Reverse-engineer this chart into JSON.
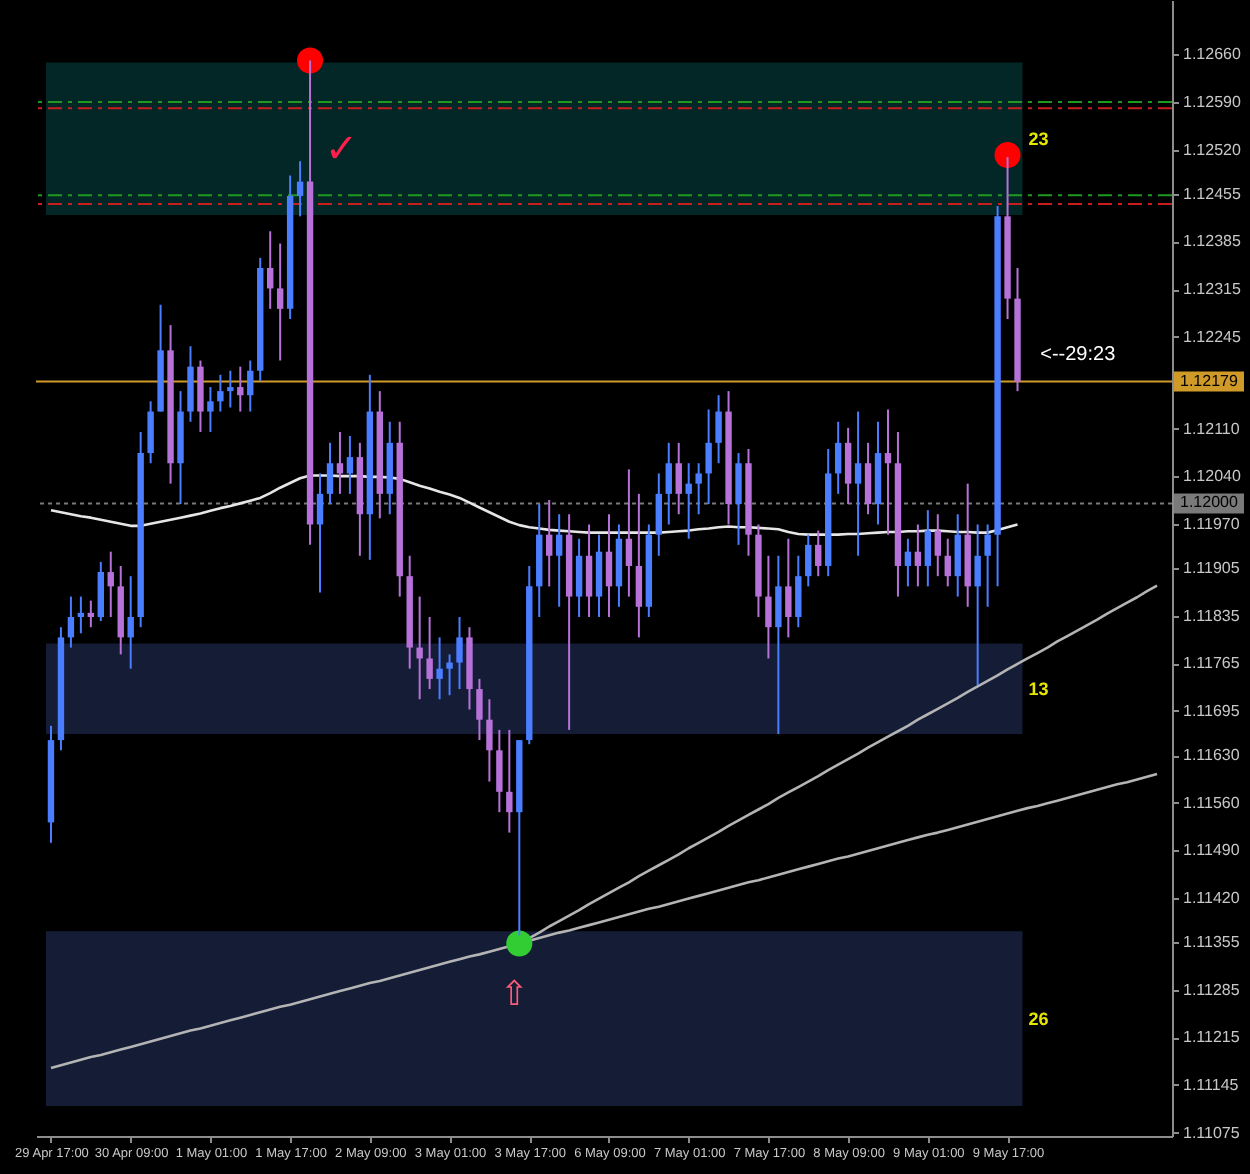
{
  "chart_data": {
    "type": "candlestick",
    "categories": [
      "29 Apr 17:00",
      null,
      null,
      null,
      null,
      null,
      null,
      null,
      "30 Apr 09:00",
      null,
      null,
      null,
      null,
      null,
      null,
      null,
      "1 May 01:00",
      null,
      null,
      null,
      null,
      null,
      null,
      null,
      "1 May 17:00",
      null,
      null,
      null,
      null,
      null,
      null,
      null,
      "2 May 09:00",
      null,
      null,
      null,
      null,
      null,
      null,
      null,
      "3 May 01:00",
      null,
      null,
      null,
      null,
      null,
      null,
      null,
      "3 May 17:00",
      null,
      null,
      null,
      null,
      null,
      null,
      null,
      "6 May 09:00",
      null,
      null,
      null,
      null,
      null,
      null,
      null,
      "7 May 01:00",
      null,
      null,
      null,
      null,
      null,
      null,
      null,
      "7 May 17:00",
      null,
      null,
      null,
      null,
      null,
      null,
      null,
      "8 May 09:00",
      null,
      null,
      null,
      null,
      null,
      null,
      null,
      "9 May 01:00",
      null,
      null,
      null,
      null,
      null,
      null,
      null,
      "9 May 17:00",
      null,
      null,
      null,
      null,
      null,
      null,
      null,
      null,
      null,
      null,
      null,
      null,
      null,
      null,
      null
    ],
    "ohlc": [
      [
        1.11531,
        1.11673,
        1.11501,
        1.11652
      ],
      [
        1.11652,
        1.11818,
        1.11637,
        1.11803
      ],
      [
        1.11803,
        1.11863,
        1.11788,
        1.11833
      ],
      [
        1.11833,
        1.11863,
        1.11809,
        1.11839
      ],
      [
        1.11839,
        1.11857,
        1.11818,
        1.11833
      ],
      [
        1.11833,
        1.11914,
        1.11827,
        1.11899
      ],
      [
        1.11899,
        1.11929,
        1.11833,
        1.11878
      ],
      [
        1.11878,
        1.11908,
        1.11778,
        1.11803
      ],
      [
        1.11803,
        1.11893,
        1.11757,
        1.11833
      ],
      [
        1.11833,
        1.12105,
        1.11818,
        1.12074
      ],
      [
        1.12074,
        1.1215,
        1.12059,
        1.12135
      ],
      [
        1.12135,
        1.12292,
        1.12135,
        1.12225
      ],
      [
        1.12225,
        1.12262,
        1.12029,
        1.12059
      ],
      [
        1.12059,
        1.12165,
        1.11999,
        1.12135
      ],
      [
        1.12135,
        1.12231,
        1.1212,
        1.12201
      ],
      [
        1.12201,
        1.1221,
        1.12105,
        1.12135
      ],
      [
        1.12135,
        1.12171,
        1.12105,
        1.1215
      ],
      [
        1.1215,
        1.12189,
        1.12135,
        1.12165
      ],
      [
        1.12165,
        1.12195,
        1.12141,
        1.12171
      ],
      [
        1.12171,
        1.12201,
        1.12135,
        1.12159
      ],
      [
        1.12159,
        1.1221,
        1.12135,
        1.12195
      ],
      [
        1.12195,
        1.12361,
        1.1218,
        1.12346
      ],
      [
        1.12346,
        1.124,
        1.12286,
        1.12316
      ],
      [
        1.12316,
        1.12382,
        1.1221,
        1.12286
      ],
      [
        1.12286,
        1.12482,
        1.12271,
        1.12452
      ],
      [
        1.12452,
        1.12503,
        1.12422,
        1.12473
      ],
      [
        1.12473,
        1.12651,
        1.11939,
        1.11969
      ],
      [
        1.11969,
        1.12044,
        1.11869,
        1.12014
      ],
      [
        1.12014,
        1.12089,
        1.11999,
        1.12059
      ],
      [
        1.12059,
        1.12105,
        1.12014,
        1.12044
      ],
      [
        1.12044,
        1.12099,
        1.12014,
        1.12068
      ],
      [
        1.12068,
        1.12089,
        1.11923,
        1.11984
      ],
      [
        1.11984,
        1.12189,
        1.11917,
        1.12135
      ],
      [
        1.12135,
        1.12165,
        1.11978,
        1.12014
      ],
      [
        1.12014,
        1.1212,
        1.11984,
        1.12089
      ],
      [
        1.12089,
        1.1212,
        1.11863,
        1.11893
      ],
      [
        1.11893,
        1.11923,
        1.11757,
        1.11788
      ],
      [
        1.11788,
        1.11863,
        1.11712,
        1.11772
      ],
      [
        1.11772,
        1.11833,
        1.11727,
        1.11742
      ],
      [
        1.11742,
        1.11803,
        1.11712,
        1.11757
      ],
      [
        1.11757,
        1.11778,
        1.11718,
        1.11766
      ],
      [
        1.11766,
        1.11833,
        1.11727,
        1.11803
      ],
      [
        1.11803,
        1.11818,
        1.11697,
        1.11727
      ],
      [
        1.11727,
        1.11742,
        1.11652,
        1.11682
      ],
      [
        1.11682,
        1.11712,
        1.11591,
        1.11637
      ],
      [
        1.11637,
        1.11667,
        1.11546,
        1.11576
      ],
      [
        1.11576,
        1.11667,
        1.11516,
        1.11546
      ],
      [
        1.11546,
        1.11652,
        1.11365,
        1.11652
      ],
      [
        1.11652,
        1.11908,
        1.11646,
        1.11878
      ],
      [
        1.11878,
        1.11999,
        1.11833,
        1.11954
      ],
      [
        1.11954,
        1.12005,
        1.11878,
        1.11923
      ],
      [
        1.11923,
        1.11984,
        1.11848,
        1.11954
      ],
      [
        1.11954,
        1.11984,
        1.11667,
        1.11863
      ],
      [
        1.11863,
        1.11948,
        1.11833,
        1.11923
      ],
      [
        1.11923,
        1.11969,
        1.11833,
        1.11863
      ],
      [
        1.11863,
        1.11954,
        1.11833,
        1.11929
      ],
      [
        1.11929,
        1.11984,
        1.11833,
        1.11878
      ],
      [
        1.11878,
        1.11969,
        1.11848,
        1.11948
      ],
      [
        1.11948,
        1.1205,
        1.11863,
        1.11908
      ],
      [
        1.11908,
        1.12014,
        1.11803,
        1.11848
      ],
      [
        1.11848,
        1.11969,
        1.11833,
        1.11954
      ],
      [
        1.11954,
        1.12044,
        1.11923,
        1.12014
      ],
      [
        1.12014,
        1.12089,
        1.11969,
        1.12059
      ],
      [
        1.12059,
        1.12089,
        1.11984,
        1.12014
      ],
      [
        1.12014,
        1.12059,
        1.11948,
        1.12029
      ],
      [
        1.12029,
        1.12059,
        1.11984,
        1.12044
      ],
      [
        1.12044,
        1.12138,
        1.11999,
        1.12089
      ],
      [
        1.12089,
        1.12159,
        1.12059,
        1.12135
      ],
      [
        1.12135,
        1.12165,
        1.11969,
        1.11999
      ],
      [
        1.11999,
        1.12074,
        1.11939,
        1.12059
      ],
      [
        1.12059,
        1.1208,
        1.11923,
        1.11954
      ],
      [
        1.11954,
        1.11969,
        1.11833,
        1.11863
      ],
      [
        1.11863,
        1.11923,
        1.11772,
        1.11818
      ],
      [
        1.11818,
        1.11923,
        1.11661,
        1.11878
      ],
      [
        1.11878,
        1.11948,
        1.11803,
        1.11833
      ],
      [
        1.11833,
        1.11923,
        1.11818,
        1.11893
      ],
      [
        1.11893,
        1.11954,
        1.11878,
        1.11939
      ],
      [
        1.11939,
        1.1196,
        1.11893,
        1.11908
      ],
      [
        1.11908,
        1.1208,
        1.11893,
        1.12044
      ],
      [
        1.12044,
        1.1212,
        1.12014,
        1.12089
      ],
      [
        1.12089,
        1.12111,
        1.11999,
        1.12029
      ],
      [
        1.12029,
        1.12135,
        1.11923,
        1.12059
      ],
      [
        1.12059,
        1.12089,
        1.11984,
        1.11999
      ],
      [
        1.11999,
        1.1212,
        1.11969,
        1.12074
      ],
      [
        1.12074,
        1.12138,
        1.11954,
        1.12059
      ],
      [
        1.12059,
        1.12105,
        1.11863,
        1.11908
      ],
      [
        1.11908,
        1.11948,
        1.11878,
        1.11929
      ],
      [
        1.11929,
        1.11969,
        1.11878,
        1.11908
      ],
      [
        1.11908,
        1.1199,
        1.11878,
        1.1196
      ],
      [
        1.1196,
        1.11984,
        1.11893,
        1.11923
      ],
      [
        1.11923,
        1.11948,
        1.11878,
        1.11893
      ],
      [
        1.11893,
        1.11984,
        1.11863,
        1.11954
      ],
      [
        1.11954,
        1.12029,
        1.11848,
        1.11878
      ],
      [
        1.11878,
        1.11969,
        1.11733,
        1.11923
      ],
      [
        1.11923,
        1.11969,
        1.11848,
        1.11954
      ],
      [
        1.11954,
        1.12437,
        1.11878,
        1.12422
      ],
      [
        1.12422,
        1.12509,
        1.12271,
        1.12301
      ],
      [
        1.12301,
        1.12346,
        1.12165,
        1.12179
      ],
      null,
      null,
      null,
      null,
      null,
      null,
      null,
      null,
      null,
      null,
      null,
      null,
      null,
      null
    ],
    "colors": [
      "#4a7dff",
      "#4a7dff",
      "#4a7dff",
      "#4a7dff",
      "#b672d8",
      "#4a7dff",
      "#b672d8",
      "#b672d8",
      "#4a7dff",
      "#4a7dff",
      "#4a7dff",
      "#4a7dff",
      "#b672d8",
      "#4a7dff",
      "#4a7dff",
      "#b672d8",
      "#4a7dff",
      "#4a7dff",
      "#4a7dff",
      "#b672d8",
      "#4a7dff",
      "#4a7dff",
      "#b672d8",
      "#b672d8",
      "#4a7dff",
      "#4a7dff",
      "#b672d8",
      "#4a7dff",
      "#4a7dff",
      "#b672d8",
      "#4a7dff",
      "#b672d8",
      "#4a7dff",
      "#b672d8",
      "#4a7dff",
      "#b672d8",
      "#b672d8",
      "#b672d8",
      "#b672d8",
      "#4a7dff",
      "#4a7dff",
      "#4a7dff",
      "#b672d8",
      "#b672d8",
      "#b672d8",
      "#b672d8",
      "#b672d8",
      "#4a7dff",
      "#4a7dff",
      "#4a7dff",
      "#b672d8",
      "#4a7dff",
      "#b672d8",
      "#4a7dff",
      "#b672d8",
      "#4a7dff",
      "#b672d8",
      "#4a7dff",
      "#b672d8",
      "#b672d8",
      "#4a7dff",
      "#4a7dff",
      "#4a7dff",
      "#b672d8",
      "#4a7dff",
      "#4a7dff",
      "#4a7dff",
      "#4a7dff",
      "#b672d8",
      "#4a7dff",
      "#b672d8",
      "#b672d8",
      "#b672d8",
      "#4a7dff",
      "#b672d8",
      "#4a7dff",
      "#4a7dff",
      "#b672d8",
      "#4a7dff",
      "#4a7dff",
      "#b672d8",
      "#4a7dff",
      "#b672d8",
      "#4a7dff",
      "#b672d8",
      "#b672d8",
      "#4a7dff",
      "#b672d8",
      "#4a7dff",
      "#b672d8",
      "#b672d8",
      "#4a7dff",
      "#b672d8",
      "#4a7dff",
      "#4a7dff",
      "#4a7dff",
      "#b672d8",
      "#b672d8",
      null,
      null,
      null,
      null,
      null,
      null,
      null,
      null,
      null,
      null,
      null,
      null,
      null,
      null
    ],
    "series": [
      {
        "type": "line",
        "color": "#e6e6e6",
        "line_style": "solid",
        "values": [
          1.1199,
          1.11987,
          1.11984,
          1.11981,
          1.11979,
          1.11976,
          1.11973,
          1.1197,
          1.11967,
          1.11967,
          1.1197,
          1.11973,
          1.11976,
          1.11979,
          1.11982,
          1.11985,
          1.11989,
          1.11993,
          1.11996,
          1.12,
          1.12004,
          1.12008,
          1.12015,
          1.12023,
          1.1203,
          1.12037,
          1.12041,
          1.12041,
          1.12041,
          1.1204,
          1.1204,
          1.1204,
          1.12039,
          1.12039,
          1.12038,
          1.12036,
          1.12031,
          1.12026,
          1.12022,
          1.12017,
          1.12013,
          1.12008,
          1.12001,
          1.11994,
          1.11987,
          1.1198,
          1.11973,
          1.11968,
          1.11965,
          1.11963,
          1.11961,
          1.1196,
          1.11959,
          1.11958,
          1.11957,
          1.11957,
          1.11957,
          1.11957,
          1.11957,
          1.11957,
          1.11957,
          1.11957,
          1.11958,
          1.11959,
          1.1196,
          1.11962,
          1.11963,
          1.11965,
          1.11966,
          1.11965,
          1.11965,
          1.11964,
          1.11963,
          1.11962,
          1.11958,
          1.11955,
          1.11954,
          1.11954,
          1.11954,
          1.11954,
          1.11955,
          1.11955,
          1.11956,
          1.11957,
          1.11958,
          1.11958,
          1.11959,
          1.11959,
          1.1196,
          1.1196,
          1.11959,
          1.11958,
          1.11958,
          1.11957,
          1.11957,
          1.11961,
          1.11965,
          1.11969,
          null,
          null,
          null,
          null,
          null,
          null,
          null,
          null,
          null,
          null,
          null,
          null,
          null,
          null
        ]
      },
      {
        "type": "line",
        "color": "#b4b4b4",
        "line_style": "solid",
        "values": [
          1.1117,
          1.11174,
          1.11178,
          1.11182,
          1.11186,
          1.11189,
          1.11193,
          1.11197,
          1.11201,
          1.11205,
          1.11209,
          1.11213,
          1.11217,
          1.11221,
          1.11225,
          1.11228,
          1.11232,
          1.11236,
          1.1124,
          1.11244,
          1.11248,
          1.11252,
          1.11256,
          1.1126,
          1.11263,
          1.11267,
          1.11271,
          1.11275,
          1.11279,
          1.11283,
          1.11287,
          1.11291,
          1.11295,
          1.11298,
          1.11302,
          1.11306,
          1.1131,
          1.11314,
          1.11318,
          1.11322,
          1.11326,
          1.1133,
          1.11334,
          1.11337,
          1.11341,
          1.11345,
          1.11349,
          1.11353,
          1.11357,
          1.11361,
          1.11365,
          1.11369,
          1.11372,
          1.11376,
          1.1138,
          1.11384,
          1.11388,
          1.11392,
          1.11396,
          1.114,
          1.11404,
          1.11407,
          1.11411,
          1.11415,
          1.11419,
          1.11423,
          1.11427,
          1.11431,
          1.11435,
          1.11439,
          1.11443,
          1.11446,
          1.1145,
          1.11454,
          1.11458,
          1.11462,
          1.11466,
          1.1147,
          1.11474,
          1.11478,
          1.11481,
          1.11485,
          1.11489,
          1.11493,
          1.11497,
          1.11501,
          1.11505,
          1.11509,
          1.11513,
          1.11516,
          1.1152,
          1.11524,
          1.11528,
          1.11532,
          1.11536,
          1.1154,
          1.11544,
          1.11548,
          1.11552,
          1.11555,
          1.11559,
          1.11563,
          1.11567,
          1.11571,
          1.11575,
          1.11579,
          1.11583,
          1.11587,
          1.1159,
          1.11594,
          1.11598,
          1.11602
        ]
      },
      {
        "type": "line",
        "color": "#b4b4b4",
        "line_style": "solid",
        "values": [
          null,
          null,
          null,
          null,
          null,
          null,
          null,
          null,
          null,
          null,
          null,
          null,
          null,
          null,
          null,
          null,
          null,
          null,
          null,
          null,
          null,
          null,
          null,
          null,
          null,
          null,
          null,
          null,
          null,
          null,
          null,
          null,
          null,
          null,
          null,
          null,
          null,
          null,
          null,
          null,
          null,
          null,
          null,
          null,
          null,
          null,
          null,
          1.11353,
          1.11361,
          1.11369,
          1.11378,
          1.11386,
          1.11394,
          1.11402,
          1.11411,
          1.11419,
          1.11427,
          1.11435,
          1.11443,
          1.11452,
          1.1146,
          1.11468,
          1.11476,
          1.11484,
          1.11493,
          1.11501,
          1.11509,
          1.11517,
          1.11526,
          1.11534,
          1.11542,
          1.1155,
          1.11558,
          1.11567,
          1.11575,
          1.11583,
          1.11591,
          1.11599,
          1.11608,
          1.11616,
          1.11624,
          1.11632,
          1.11641,
          1.11649,
          1.11657,
          1.11665,
          1.11673,
          1.11682,
          1.1169,
          1.11698,
          1.11706,
          1.11714,
          1.11723,
          1.11731,
          1.11739,
          1.11747,
          1.11756,
          1.11764,
          1.11772,
          1.1178,
          1.11788,
          1.11797,
          1.11805,
          1.11813,
          1.11821,
          1.11829,
          1.11838,
          1.11846,
          1.11854,
          1.11862,
          1.11871,
          1.11879
        ]
      },
      {
        "type": "scatter",
        "color": "#ff0000",
        "marker": "circle",
        "values": [
          null,
          null,
          null,
          null,
          null,
          null,
          null,
          null,
          null,
          null,
          null,
          null,
          null,
          null,
          null,
          null,
          null,
          null,
          null,
          null,
          null,
          null,
          null,
          null,
          null,
          null,
          1.12651,
          null,
          null,
          null,
          null,
          null,
          null,
          null,
          null,
          null,
          null,
          null,
          null,
          null,
          null,
          null,
          null,
          null,
          null,
          null,
          null,
          null,
          null,
          null,
          null,
          null,
          null,
          null,
          null,
          null,
          null,
          null,
          null,
          null,
          null,
          null,
          null,
          null,
          null,
          null,
          null,
          null,
          null,
          null,
          null,
          null,
          null,
          null,
          null,
          null,
          null,
          null,
          null,
          null,
          null,
          null,
          null,
          null,
          null,
          null,
          null,
          null,
          null,
          null,
          null,
          null,
          null,
          null,
          null,
          null,
          1.12512,
          null,
          null,
          null,
          null,
          null,
          null,
          null,
          null,
          null,
          null,
          null,
          null,
          null,
          null,
          null
        ]
      },
      {
        "type": "scatter",
        "color": "#32cd32",
        "marker": "circle",
        "values": [
          null,
          null,
          null,
          null,
          null,
          null,
          null,
          null,
          null,
          null,
          null,
          null,
          null,
          null,
          null,
          null,
          null,
          null,
          null,
          null,
          null,
          null,
          null,
          null,
          null,
          null,
          null,
          null,
          null,
          null,
          null,
          null,
          null,
          null,
          null,
          null,
          null,
          null,
          null,
          null,
          null,
          null,
          null,
          null,
          null,
          null,
          null,
          1.11353,
          null,
          null,
          null,
          null,
          null,
          null,
          null,
          null,
          null,
          null,
          null,
          null,
          null,
          null,
          null,
          null,
          null,
          null,
          null,
          null,
          null,
          null,
          null,
          null,
          null,
          null,
          null,
          null,
          null,
          null,
          null,
          null,
          null,
          null,
          null,
          null,
          null,
          null,
          null,
          null,
          null,
          null,
          null,
          null,
          null,
          null,
          null,
          null,
          null,
          null,
          null,
          null,
          null,
          null,
          null,
          null,
          null,
          null,
          null,
          null,
          null,
          null,
          null,
          null
        ]
      }
    ],
    "ylim": [
      1.1107,
      1.1274
    ],
    "yticks": [
      {
        "value": 1.1266,
        "label": "1.12660"
      },
      {
        "value": 1.1259,
        "label": "1.12590"
      },
      {
        "value": 1.1252,
        "label": "1.12520"
      },
      1.12455,
      1.12385,
      1.12315,
      1.12245,
      {
        "value": 1.1211,
        "label": "1.12110"
      },
      {
        "value": 1.1204,
        "label": "1.12040"
      },
      {
        "value": 1.1197,
        "label": "1.11970"
      },
      1.11905,
      1.11835,
      1.11765,
      1.11695,
      {
        "value": 1.1163,
        "label": "1.11630"
      },
      {
        "value": 1.1156,
        "label": "1.11560"
      },
      {
        "value": 1.1149,
        "label": "1.11490"
      },
      {
        "value": 1.1142,
        "label": "1.11420"
      },
      1.11355,
      1.11285,
      1.11215,
      1.11145,
      1.11075
    ],
    "ref_lines": [
      {
        "axis": "y",
        "value": 1.1259,
        "color": "#1f9a1f",
        "line_style": "dashed"
      },
      {
        "axis": "y",
        "value": 1.12581,
        "color": "#c81e1e",
        "line_style": "dashed"
      },
      {
        "axis": "y",
        "value": 1.12453,
        "color": "#1f9a1f",
        "line_style": "dashed"
      },
      {
        "axis": "y",
        "value": 1.1244,
        "color": "#c81e1e",
        "line_style": "dashed"
      },
      {
        "axis": "y",
        "value": 1.12179,
        "label": "1.12179",
        "color": "#d09a28",
        "line_style": "solid"
      },
      {
        "axis": "y",
        "value": 1.12,
        "label": "1.12000",
        "color": "#7a7a7a",
        "line_style": "dotted"
      }
    ],
    "bands": [
      {
        "axis": "y",
        "from": 1.12424,
        "to": 1.12648,
        "label": "23",
        "color": "#032626"
      },
      {
        "axis": "y",
        "from": 1.11661,
        "to": 1.11794,
        "label": "13",
        "color": "#141c36"
      },
      {
        "axis": "y",
        "from": 1.11114,
        "to": 1.11371,
        "label": "26",
        "color": "#141c36"
      }
    ],
    "annotations": [
      "<--29:23",
      "✓",
      "⇧"
    ]
  }
}
